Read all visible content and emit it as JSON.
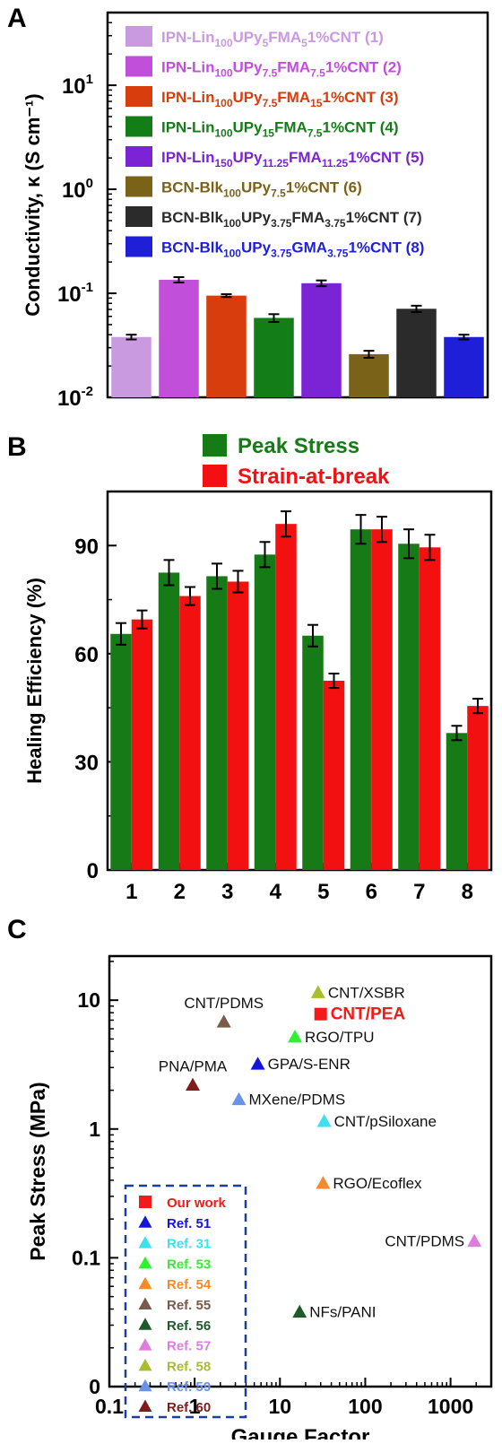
{
  "panels": [
    {
      "label": "A"
    },
    {
      "label": "B"
    },
    {
      "label": "C"
    }
  ],
  "chart_data": [
    {
      "type": "bar",
      "yscale": "log",
      "ylabel": "Conductivity, κ (S cm⁻¹)",
      "ylim": [
        0.01,
        50
      ],
      "yticks": [
        {
          "value": 0.01,
          "base": "10",
          "exp": "-2"
        },
        {
          "value": 0.1,
          "base": "10",
          "exp": "-1"
        },
        {
          "value": 1,
          "base": "10",
          "exp": "0"
        },
        {
          "value": 10,
          "base": "10",
          "exp": "1"
        }
      ],
      "legend_position": "top-right",
      "series": [
        {
          "parts": [
            [
              "IPN-Lin",
              ""
            ],
            [
              "100",
              "sub"
            ],
            [
              "UPy",
              ""
            ],
            [
              "5",
              "sub"
            ],
            [
              "FMA",
              ""
            ],
            [
              "5",
              "sub"
            ],
            [
              "1%CNT (1)",
              ""
            ]
          ],
          "color": "#c99ae0",
          "value": 0.038,
          "err": 0.002
        },
        {
          "parts": [
            [
              "IPN-Lin",
              ""
            ],
            [
              "100",
              "sub"
            ],
            [
              "UPy",
              ""
            ],
            [
              "7.5",
              "sub"
            ],
            [
              "FMA",
              ""
            ],
            [
              "7.5",
              "sub"
            ],
            [
              "1%CNT (2)",
              ""
            ]
          ],
          "color": "#c14fda",
          "value": 0.135,
          "err": 0.008
        },
        {
          "parts": [
            [
              "IPN-Lin",
              ""
            ],
            [
              "100",
              "sub"
            ],
            [
              "UPy",
              ""
            ],
            [
              "7.5",
              "sub"
            ],
            [
              "FMA",
              ""
            ],
            [
              "15",
              "sub"
            ],
            [
              "1%CNT (3)",
              ""
            ]
          ],
          "color": "#d83d0d",
          "value": 0.095,
          "err": 0.003
        },
        {
          "parts": [
            [
              "IPN-Lin",
              ""
            ],
            [
              "100",
              "sub"
            ],
            [
              "UPy",
              ""
            ],
            [
              "15",
              "sub"
            ],
            [
              "FMA",
              ""
            ],
            [
              "7.5",
              "sub"
            ],
            [
              "1%CNT (4)",
              ""
            ]
          ],
          "color": "#137d17",
          "value": 0.058,
          "err": 0.005
        },
        {
          "parts": [
            [
              "IPN-Lin",
              ""
            ],
            [
              "150",
              "sub"
            ],
            [
              "UPy",
              ""
            ],
            [
              "11.25",
              "sub"
            ],
            [
              "FMA",
              ""
            ],
            [
              "11.25",
              "sub"
            ],
            [
              "1%CNT (5)",
              ""
            ]
          ],
          "color": "#7a24d6",
          "value": 0.125,
          "err": 0.008
        },
        {
          "parts": [
            [
              "BCN-Blk",
              ""
            ],
            [
              "100",
              "sub"
            ],
            [
              "UPy",
              ""
            ],
            [
              "7.5",
              "sub"
            ],
            [
              "1%CNT (6)",
              ""
            ]
          ],
          "color": "#7a6318",
          "value": 0.026,
          "err": 0.002
        },
        {
          "parts": [
            [
              "BCN-Blk",
              ""
            ],
            [
              "100",
              "sub"
            ],
            [
              "UPy",
              ""
            ],
            [
              "3.75",
              "sub"
            ],
            [
              "FMA",
              ""
            ],
            [
              "3.75",
              "sub"
            ],
            [
              "1%CNT (7)",
              ""
            ]
          ],
          "color": "#2b2b2b",
          "value": 0.071,
          "err": 0.005
        },
        {
          "parts": [
            [
              "BCN-Blk",
              ""
            ],
            [
              "100",
              "sub"
            ],
            [
              "UPy",
              ""
            ],
            [
              "3.75",
              "sub"
            ],
            [
              "GMA",
              ""
            ],
            [
              "3.75",
              "sub"
            ],
            [
              "1%CNT (8)",
              ""
            ]
          ],
          "color": "#1f1fd8",
          "value": 0.038,
          "err": 0.002
        }
      ]
    },
    {
      "type": "bar",
      "ylabel": "Healing Efficiency (%)",
      "ylim": [
        0,
        105
      ],
      "yticks": [
        0,
        30,
        60,
        90
      ],
      "categories": [
        "1",
        "2",
        "3",
        "4",
        "5",
        "6",
        "7",
        "8"
      ],
      "legend_position": "top",
      "series": [
        {
          "name": "Peak Stress",
          "color": "#167a16",
          "values": [
            65.5,
            82.5,
            81.5,
            87.5,
            65,
            94.5,
            90.5,
            38
          ],
          "errors": [
            3,
            3.5,
            3.5,
            3.5,
            3,
            4,
            4,
            2
          ]
        },
        {
          "name": "Strain-at-break",
          "color": "#f21010",
          "values": [
            69.5,
            76,
            80,
            96,
            52.5,
            94.5,
            89.5,
            45.5
          ],
          "errors": [
            2.5,
            2.5,
            3,
            3.5,
            2,
            3.5,
            3.5,
            2
          ]
        }
      ]
    },
    {
      "type": "scatter",
      "xscale": "log",
      "yscale": "log",
      "xlabel": "Gauge Factor",
      "ylabel": "Peak Stress (MPa)",
      "xlim": [
        0.1,
        3000
      ],
      "ylim": [
        0.01,
        22
      ],
      "xticks": [
        "0.1",
        "1",
        "10",
        "100",
        "1000"
      ],
      "yticks": [
        {
          "value": 0.01,
          "label": "0"
        },
        {
          "value": 0.1,
          "label": "0.1"
        },
        {
          "value": 1,
          "label": "1"
        },
        {
          "value": 10,
          "label": "10"
        }
      ],
      "legend_position": "bottom-left",
      "legend": [
        {
          "name": "Our work",
          "color": "#f21a1a",
          "marker": "square"
        },
        {
          "name": "Ref. 51",
          "color": "#1515d9",
          "marker": "triangle"
        },
        {
          "name": "Ref. 31",
          "color": "#3fdfef",
          "marker": "triangle"
        },
        {
          "name": "Ref. 53",
          "color": "#2ff22f",
          "marker": "triangle"
        },
        {
          "name": "Ref. 54",
          "color": "#f58a2a",
          "marker": "triangle"
        },
        {
          "name": "Ref. 55",
          "color": "#7a5a48",
          "marker": "triangle"
        },
        {
          "name": "Ref. 56",
          "color": "#1e5a2a",
          "marker": "triangle"
        },
        {
          "name": "Ref. 57",
          "color": "#df7ddf",
          "marker": "triangle"
        },
        {
          "name": "Ref. 58",
          "color": "#a9be2c",
          "marker": "triangle"
        },
        {
          "name": "Ref. 59",
          "color": "#6a92e6",
          "marker": "triangle"
        },
        {
          "name": "Ref. 60",
          "color": "#7e1c1c",
          "marker": "triangle"
        }
      ],
      "points": [
        {
          "label": "CNT/XSBR",
          "x": 28,
          "y": 11.5,
          "color": "#a9be2c",
          "marker": "triangle",
          "label_side": "right",
          "highlight": false
        },
        {
          "label": "CNT/PEA",
          "x": 30,
          "y": 7.8,
          "color": "#f21a1a",
          "marker": "square",
          "label_side": "right",
          "highlight": true
        },
        {
          "label": "CNT/PDMS",
          "x": 2.2,
          "y": 6.8,
          "color": "#7a5a48",
          "marker": "triangle",
          "label_side": "top",
          "highlight": false
        },
        {
          "label": "RGO/TPU",
          "x": 15,
          "y": 5.2,
          "color": "#2ff22f",
          "marker": "triangle",
          "label_side": "right",
          "highlight": false
        },
        {
          "label": "GPA/S-ENR",
          "x": 5.5,
          "y": 3.2,
          "color": "#1515d9",
          "marker": "triangle",
          "label_side": "right",
          "highlight": false
        },
        {
          "label": "PNA/PMA",
          "x": 0.95,
          "y": 2.2,
          "color": "#7e1c1c",
          "marker": "triangle",
          "label_side": "top",
          "highlight": false
        },
        {
          "label": "MXene/PDMS",
          "x": 3.3,
          "y": 1.7,
          "color": "#6a92e6",
          "marker": "triangle",
          "label_side": "right",
          "highlight": false
        },
        {
          "label": "CNT/pSiloxane",
          "x": 33,
          "y": 1.15,
          "color": "#3fdfef",
          "marker": "triangle",
          "label_side": "right",
          "highlight": false
        },
        {
          "label": "RGO/Ecoflex",
          "x": 32,
          "y": 0.38,
          "color": "#f58a2a",
          "marker": "triangle",
          "label_side": "right",
          "highlight": false
        },
        {
          "label": "CNT/PDMS",
          "x": 1900,
          "y": 0.135,
          "color": "#df7ddf",
          "marker": "triangle",
          "label_side": "left",
          "highlight": false
        },
        {
          "label": "NFs/PANI",
          "x": 17,
          "y": 0.038,
          "color": "#1e5a2a",
          "marker": "triangle",
          "label_side": "right",
          "highlight": false
        }
      ]
    }
  ]
}
